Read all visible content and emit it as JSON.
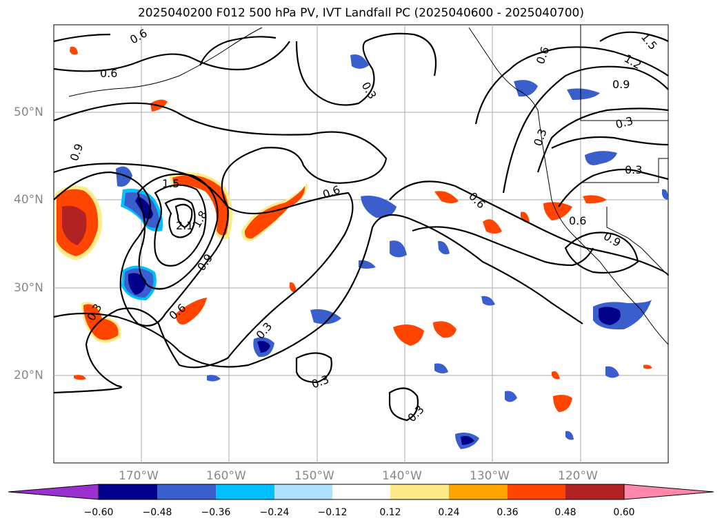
{
  "title": "2025040200 F012 500 hPa PV, IVT Landfall PC (2025040600 - 2025040700)",
  "lat_labels": [
    "50°N",
    "40°N",
    "30°N",
    "20°N"
  ],
  "lon_labels": [
    "170°W",
    "160°W",
    "150°W",
    "140°W",
    "130°W",
    "120°W"
  ],
  "contour_labels": [
    "0.6",
    "0.6",
    "0.9",
    "1.5",
    "2.1",
    "1.8",
    "0.9",
    "0.6",
    "0.3",
    "0.3",
    "0.3",
    "0.3",
    "0.6",
    "0.6",
    "0.3",
    "0.9",
    "1.2",
    "1.5",
    "0.6",
    "0.3",
    "0.3",
    "0.6",
    "0.9",
    "0.3"
  ],
  "colorbar": {
    "ticks": [
      "−0.60",
      "−0.48",
      "−0.36",
      "−0.24",
      "−0.12",
      "0.12",
      "0.24",
      "0.36",
      "0.48",
      "0.60"
    ],
    "colors": [
      "#9b30d0",
      "#00008b",
      "#3a5fcd",
      "#00bfff",
      "#b0e2ff",
      "#ffffff",
      "#ffeb8a",
      "#ffa500",
      "#ff4500",
      "#b22222",
      "#ff88aa"
    ]
  },
  "colors": {
    "deep_blue": "#00008b",
    "mid_blue": "#3a5fcd",
    "light_blue": "#00bfff",
    "orange_red": "#ff4500",
    "dark_red": "#b22222",
    "orange": "#ffa500",
    "yellow": "#ffeb8a"
  }
}
